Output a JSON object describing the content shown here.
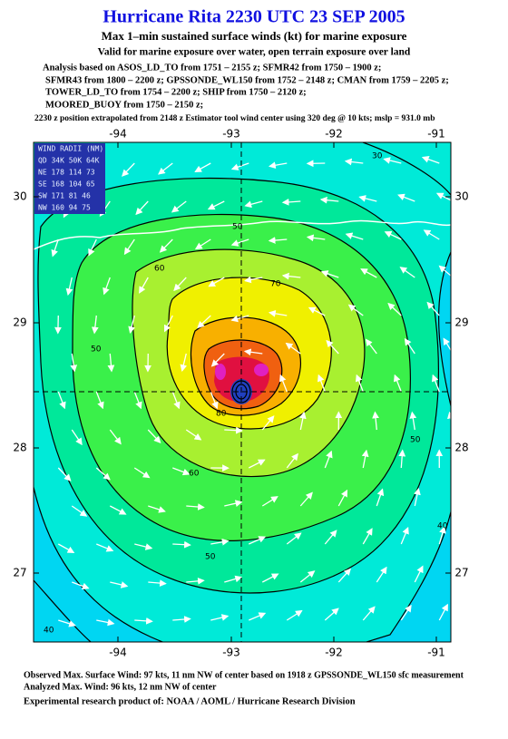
{
  "header": {
    "title": "Hurricane Rita 2230 UTC 23 SEP 2005",
    "subtitle": "Max 1–min sustained surface winds (kt) for marine exposure",
    "validity": "Valid for marine exposure over water, open terrain exposure over land",
    "analysis_lines": [
      "Analysis based on  ASOS_LD_TO from 1751 – 2155 z;  SFMR42 from 1750 – 1900 z;",
      "SFMR43 from 1800 – 2200 z;  GPSSONDE_WL150 from 1752 – 2148 z;  CMAN from 1759 – 2205 z;",
      "TOWER_LD_TO from 1754 – 2200 z;  SHIP from 1750 – 2120 z;",
      "MOORED_BUOY from 1750 – 2150 z;"
    ],
    "position_note": "2230 z position extrapolated from 2148 z Estimator tool wind center using 320 deg @ 10 kts; mslp = 931.0 mb"
  },
  "map": {
    "lon_ticks": [
      "-94",
      "-93",
      "-92",
      "-91"
    ],
    "lat_ticks": [
      "30",
      "29",
      "28",
      "27"
    ],
    "wind_radii": [
      "WIND RADII (NM)",
      "QD 34K 50K 64K",
      "NE 178 114  73",
      "SE 168 104  65",
      "SW 171  81  46",
      "NW 160  94  75"
    ],
    "contour_labels": [
      "30",
      "50",
      "60",
      "70",
      "50",
      "80",
      "60",
      "50",
      "50",
      "40",
      "40"
    ]
  },
  "footer": {
    "observed": "Observed Max. Surface Wind: 97 kts, 11 nm NW of center based on 1918 z GPSSONDE_WL150 sfc measurement",
    "analyzed": "Analyzed Max. Wind: 96 kts, 12 nm NW of center",
    "product": "Experimental research product of:  NOAA / AOML / Hurricane Research Division"
  }
}
